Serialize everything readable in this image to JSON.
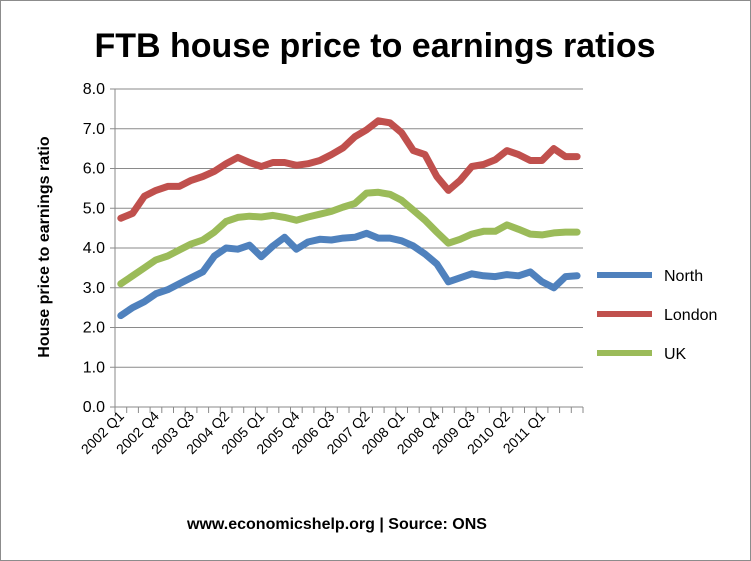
{
  "chart_data": {
    "type": "line",
    "title": "FTB house price to earnings ratios",
    "ylabel": "House price to earnings ratio",
    "xlabel": "",
    "footer": "www.economicshelp.org | Source: ONS",
    "ylim": [
      0,
      8
    ],
    "yticks": [
      "0.0",
      "1.0",
      "2.0",
      "3.0",
      "4.0",
      "5.0",
      "6.0",
      "7.0",
      "8.0"
    ],
    "grid": true,
    "legend_position": "right",
    "x_tick_labels": [
      "2002 Q1",
      "2002 Q4",
      "2003 Q3",
      "2004 Q2",
      "2005 Q1",
      "2005 Q4",
      "2006 Q3",
      "2007 Q2",
      "2008 Q1",
      "2008 Q4",
      "2009 Q3",
      "2010 Q2",
      "2011 Q1"
    ],
    "categories": [
      "2002 Q1",
      "2002 Q2",
      "2002 Q3",
      "2002 Q4",
      "2003 Q1",
      "2003 Q2",
      "2003 Q3",
      "2003 Q4",
      "2004 Q1",
      "2004 Q2",
      "2004 Q3",
      "2004 Q4",
      "2005 Q1",
      "2005 Q2",
      "2005 Q3",
      "2005 Q4",
      "2006 Q1",
      "2006 Q2",
      "2006 Q3",
      "2006 Q4",
      "2007 Q1",
      "2007 Q2",
      "2007 Q3",
      "2007 Q4",
      "2008 Q1",
      "2008 Q2",
      "2008 Q3",
      "2008 Q4",
      "2009 Q1",
      "2009 Q2",
      "2009 Q3",
      "2009 Q4",
      "2010 Q1",
      "2010 Q2",
      "2010 Q3",
      "2010 Q4",
      "2011 Q1",
      "2011 Q2",
      "2011 Q3",
      "2011 Q4"
    ],
    "series": [
      {
        "name": "North",
        "color": "#4f81bd",
        "values": [
          2.3,
          2.5,
          2.65,
          2.85,
          2.95,
          3.1,
          3.25,
          3.4,
          3.8,
          4.0,
          3.97,
          4.07,
          3.78,
          4.05,
          4.27,
          3.97,
          4.15,
          4.22,
          4.2,
          4.25,
          4.27,
          4.37,
          4.25,
          4.25,
          4.18,
          4.05,
          3.85,
          3.6,
          3.15,
          3.25,
          3.35,
          3.3,
          3.28,
          3.33,
          3.3,
          3.4,
          3.15,
          3.0,
          3.28,
          3.3
        ]
      },
      {
        "name": "London",
        "color": "#c0504d",
        "values": [
          4.75,
          4.87,
          5.3,
          5.45,
          5.55,
          5.55,
          5.7,
          5.8,
          5.93,
          6.12,
          6.28,
          6.15,
          6.05,
          6.15,
          6.15,
          6.08,
          6.12,
          6.2,
          6.35,
          6.52,
          6.8,
          6.97,
          7.2,
          7.15,
          6.9,
          6.45,
          6.35,
          5.8,
          5.45,
          5.7,
          6.05,
          6.1,
          6.22,
          6.45,
          6.35,
          6.2,
          6.2,
          6.5,
          6.3,
          6.3
        ]
      },
      {
        "name": "UK",
        "color": "#9bbb59",
        "values": [
          3.1,
          3.3,
          3.5,
          3.7,
          3.8,
          3.95,
          4.1,
          4.2,
          4.4,
          4.67,
          4.77,
          4.8,
          4.78,
          4.82,
          4.77,
          4.7,
          4.78,
          4.85,
          4.92,
          5.03,
          5.12,
          5.38,
          5.4,
          5.35,
          5.2,
          4.95,
          4.7,
          4.4,
          4.12,
          4.22,
          4.35,
          4.42,
          4.42,
          4.58,
          4.47,
          4.35,
          4.33,
          4.38,
          4.4,
          4.4
        ]
      }
    ]
  }
}
